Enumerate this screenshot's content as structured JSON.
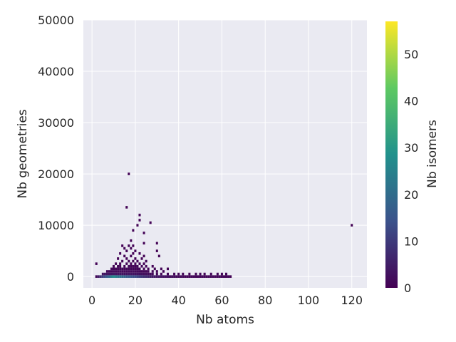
{
  "chart_data": {
    "type": "heatmap",
    "title": "",
    "xlabel": "Nb atoms",
    "ylabel": "Nb geometries",
    "colorbar_label": "Nb isomers",
    "colormap": "viridis",
    "colormap_stops": [
      "#440154",
      "#3b528b",
      "#21918c",
      "#5ec962",
      "#fde725"
    ],
    "background_color": "#eaeaf2",
    "grid": true,
    "xlim": [
      -4,
      127
    ],
    "ylim": [
      -2200,
      50000
    ],
    "color_range": [
      0,
      57
    ],
    "x_ticks": [
      "0",
      "20",
      "40",
      "60",
      "80",
      "100",
      "120"
    ],
    "y_ticks": [
      "0",
      "10000",
      "20000",
      "30000",
      "40000",
      "50000"
    ],
    "colorbar_ticks": [
      "0",
      "10",
      "20",
      "30",
      "40",
      "50"
    ],
    "cells": [
      [
        2,
        0,
        3
      ],
      [
        3,
        0,
        8
      ],
      [
        4,
        0,
        15
      ],
      [
        5,
        0,
        20
      ],
      [
        6,
        0,
        25
      ],
      [
        7,
        0,
        30
      ],
      [
        8,
        0,
        35
      ],
      [
        9,
        0,
        45
      ],
      [
        10,
        0,
        50
      ],
      [
        11,
        0,
        45
      ],
      [
        12,
        0,
        40
      ],
      [
        13,
        0,
        40
      ],
      [
        14,
        0,
        35
      ],
      [
        15,
        0,
        35
      ],
      [
        16,
        0,
        30
      ],
      [
        17,
        0,
        30
      ],
      [
        18,
        0,
        28
      ],
      [
        19,
        0,
        25
      ],
      [
        20,
        0,
        25
      ],
      [
        21,
        0,
        22
      ],
      [
        22,
        0,
        20
      ],
      [
        23,
        0,
        18
      ],
      [
        24,
        0,
        15
      ],
      [
        25,
        0,
        14
      ],
      [
        26,
        0,
        12
      ],
      [
        27,
        0,
        10
      ],
      [
        28,
        0,
        9
      ],
      [
        29,
        0,
        8
      ],
      [
        30,
        0,
        7
      ],
      [
        31,
        0,
        6
      ],
      [
        32,
        0,
        6
      ],
      [
        33,
        0,
        5
      ],
      [
        34,
        0,
        5
      ],
      [
        35,
        0,
        5
      ],
      [
        36,
        0,
        4
      ],
      [
        37,
        0,
        4
      ],
      [
        38,
        0,
        4
      ],
      [
        39,
        0,
        3
      ],
      [
        40,
        0,
        3
      ],
      [
        41,
        0,
        3
      ],
      [
        42,
        0,
        3
      ],
      [
        43,
        0,
        2
      ],
      [
        44,
        0,
        2
      ],
      [
        45,
        0,
        2
      ],
      [
        46,
        0,
        2
      ],
      [
        47,
        0,
        2
      ],
      [
        48,
        0,
        2
      ],
      [
        49,
        0,
        2
      ],
      [
        50,
        0,
        2
      ],
      [
        51,
        0,
        2
      ],
      [
        52,
        0,
        2
      ],
      [
        53,
        0,
        2
      ],
      [
        54,
        0,
        2
      ],
      [
        55,
        0,
        2
      ],
      [
        56,
        0,
        2
      ],
      [
        57,
        0,
        2
      ],
      [
        58,
        0,
        2
      ],
      [
        59,
        0,
        2
      ],
      [
        60,
        0,
        2
      ],
      [
        61,
        0,
        2
      ],
      [
        62,
        0,
        2
      ],
      [
        63,
        0,
        2
      ],
      [
        64,
        0,
        1
      ],
      [
        5,
        500,
        5
      ],
      [
        6,
        500,
        6
      ],
      [
        7,
        500,
        6
      ],
      [
        8,
        500,
        6
      ],
      [
        9,
        500,
        6
      ],
      [
        10,
        500,
        7
      ],
      [
        11,
        500,
        6
      ],
      [
        12,
        500,
        6
      ],
      [
        13,
        500,
        6
      ],
      [
        14,
        500,
        6
      ],
      [
        15,
        500,
        5
      ],
      [
        16,
        500,
        6
      ],
      [
        17,
        500,
        6
      ],
      [
        18,
        500,
        6
      ],
      [
        19,
        500,
        6
      ],
      [
        20,
        500,
        5
      ],
      [
        21,
        500,
        6
      ],
      [
        22,
        500,
        5
      ],
      [
        23,
        500,
        5
      ],
      [
        24,
        500,
        4
      ],
      [
        25,
        500,
        4
      ],
      [
        26,
        500,
        4
      ],
      [
        27,
        500,
        3
      ],
      [
        28,
        500,
        3
      ],
      [
        30,
        500,
        2
      ],
      [
        32,
        500,
        2
      ],
      [
        35,
        500,
        2
      ],
      [
        38,
        500,
        2
      ],
      [
        40,
        500,
        2
      ],
      [
        42,
        500,
        2
      ],
      [
        45,
        500,
        2
      ],
      [
        48,
        500,
        2
      ],
      [
        50,
        500,
        2
      ],
      [
        52,
        500,
        2
      ],
      [
        55,
        500,
        2
      ],
      [
        58,
        500,
        2
      ],
      [
        60,
        500,
        2
      ],
      [
        62,
        500,
        2
      ],
      [
        7,
        1000,
        3
      ],
      [
        8,
        1000,
        3
      ],
      [
        9,
        1000,
        3
      ],
      [
        10,
        1000,
        4
      ],
      [
        11,
        1000,
        3
      ],
      [
        12,
        1000,
        3
      ],
      [
        13,
        1000,
        4
      ],
      [
        14,
        1000,
        3
      ],
      [
        15,
        1000,
        3
      ],
      [
        16,
        1000,
        3
      ],
      [
        17,
        1000,
        3
      ],
      [
        18,
        1000,
        3
      ],
      [
        19,
        1000,
        4
      ],
      [
        20,
        1000,
        3
      ],
      [
        21,
        1000,
        3
      ],
      [
        22,
        1000,
        3
      ],
      [
        23,
        1000,
        2
      ],
      [
        24,
        1000,
        2
      ],
      [
        25,
        1000,
        2
      ],
      [
        26,
        1000,
        2
      ],
      [
        28,
        1000,
        2
      ],
      [
        30,
        1000,
        1
      ],
      [
        33,
        1000,
        1
      ],
      [
        9,
        1500,
        2
      ],
      [
        10,
        1500,
        2
      ],
      [
        11,
        1500,
        2
      ],
      [
        12,
        1500,
        2
      ],
      [
        13,
        1500,
        2
      ],
      [
        14,
        1500,
        2
      ],
      [
        15,
        1500,
        2
      ],
      [
        16,
        1500,
        2
      ],
      [
        17,
        1500,
        2
      ],
      [
        18,
        1500,
        2
      ],
      [
        19,
        1500,
        2
      ],
      [
        20,
        1500,
        2
      ],
      [
        21,
        1500,
        2
      ],
      [
        22,
        1500,
        2
      ],
      [
        24,
        1500,
        1
      ],
      [
        26,
        1500,
        1
      ],
      [
        29,
        1500,
        1
      ],
      [
        32,
        1500,
        1
      ],
      [
        35,
        1500,
        1
      ],
      [
        10,
        2000,
        1
      ],
      [
        12,
        2000,
        2
      ],
      [
        13,
        2000,
        1
      ],
      [
        15,
        2000,
        1
      ],
      [
        17,
        2000,
        2
      ],
      [
        18,
        2000,
        1
      ],
      [
        19,
        2000,
        2
      ],
      [
        20,
        2000,
        1
      ],
      [
        21,
        2000,
        2
      ],
      [
        23,
        2000,
        1
      ],
      [
        25,
        2000,
        1
      ],
      [
        28,
        2000,
        1
      ],
      [
        2,
        2500,
        1
      ],
      [
        11,
        2500,
        1
      ],
      [
        13,
        2500,
        1
      ],
      [
        16,
        2500,
        1
      ],
      [
        18,
        2500,
        1
      ],
      [
        20,
        2500,
        1
      ],
      [
        22,
        2500,
        1
      ],
      [
        24,
        2500,
        1
      ],
      [
        14,
        3000,
        1
      ],
      [
        17,
        3000,
        1
      ],
      [
        19,
        3000,
        1
      ],
      [
        21,
        3000,
        1
      ],
      [
        25,
        3000,
        1
      ],
      [
        12,
        3500,
        1
      ],
      [
        16,
        3500,
        1
      ],
      [
        20,
        3500,
        1
      ],
      [
        23,
        3500,
        1
      ],
      [
        15,
        4000,
        1
      ],
      [
        18,
        4000,
        1
      ],
      [
        24,
        4000,
        1
      ],
      [
        31,
        4000,
        1
      ],
      [
        13,
        4500,
        1
      ],
      [
        19,
        4500,
        1
      ],
      [
        22,
        4500,
        1
      ],
      [
        16,
        5000,
        1
      ],
      [
        20,
        5000,
        1
      ],
      [
        30,
        5000,
        1
      ],
      [
        15,
        5500,
        1
      ],
      [
        18,
        5500,
        1
      ],
      [
        14,
        6000,
        1
      ],
      [
        17,
        6000,
        1
      ],
      [
        19,
        6000,
        1
      ],
      [
        24,
        6500,
        1
      ],
      [
        30,
        6500,
        1
      ],
      [
        18,
        7000,
        1
      ],
      [
        24,
        8500,
        1
      ],
      [
        19,
        9000,
        1
      ],
      [
        21,
        10000,
        1
      ],
      [
        120,
        10000,
        1
      ],
      [
        27,
        10500,
        1
      ],
      [
        22,
        11000,
        1
      ],
      [
        22,
        12000,
        1
      ],
      [
        16,
        13500,
        1
      ],
      [
        17,
        20000,
        1
      ]
    ]
  }
}
